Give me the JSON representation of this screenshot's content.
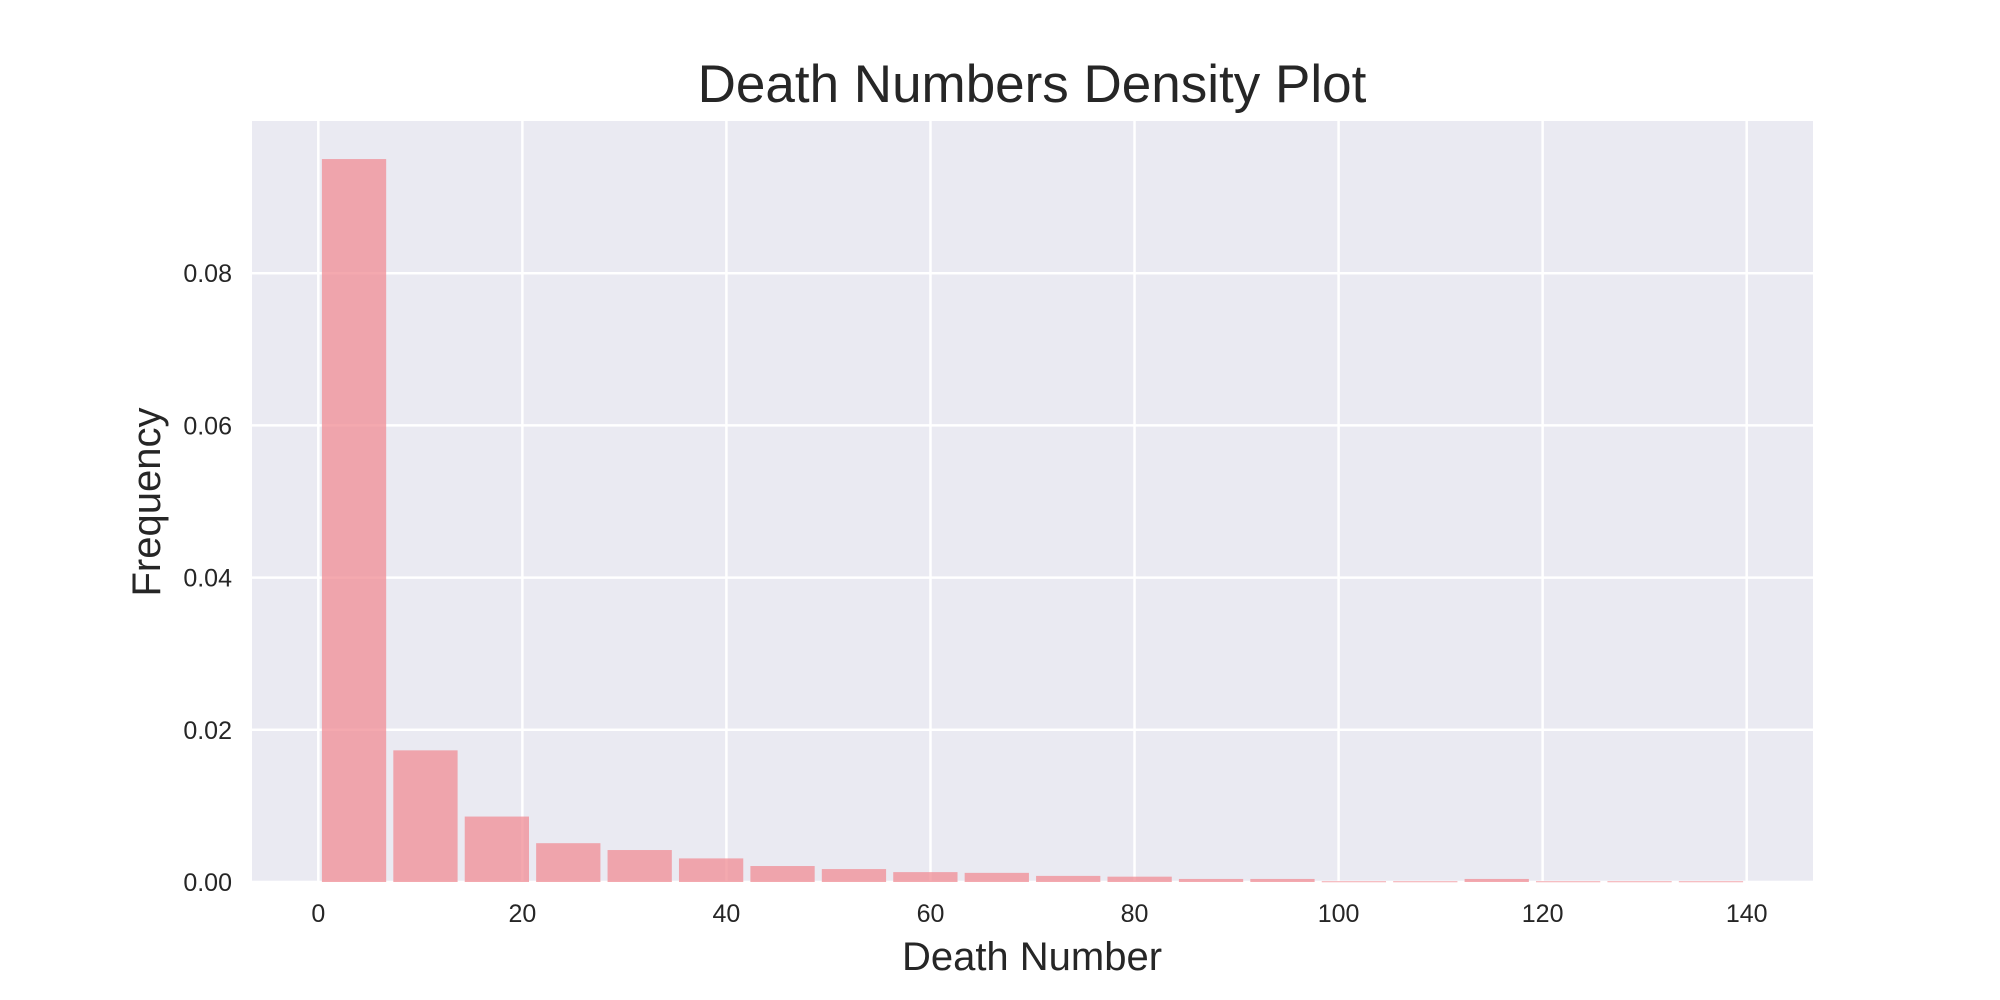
{
  "chart_data": {
    "type": "bar",
    "title": "Death Numbers Density Plot",
    "xlabel": "Death Number",
    "ylabel": "Frequency",
    "xlim": [
      -6.5,
      146.5
    ],
    "ylim": [
      0,
      0.1
    ],
    "grid": true,
    "xticks": [
      0,
      20,
      40,
      60,
      80,
      100,
      120,
      140
    ],
    "xtick_labels": [
      "0",
      "20",
      "40",
      "60",
      "80",
      "100",
      "120",
      "140"
    ],
    "yticks": [
      0,
      0.02,
      0.04,
      0.06,
      0.08
    ],
    "ytick_labels": [
      "0.00",
      "0.02",
      "0.04",
      "0.06",
      "0.08"
    ],
    "bin_width": 7,
    "bins": [
      {
        "start": 0,
        "end": 7,
        "value": 0.095
      },
      {
        "start": 7,
        "end": 14,
        "value": 0.0173
      },
      {
        "start": 14,
        "end": 21,
        "value": 0.0086
      },
      {
        "start": 21,
        "end": 28,
        "value": 0.0051
      },
      {
        "start": 28,
        "end": 35,
        "value": 0.0042
      },
      {
        "start": 35,
        "end": 42,
        "value": 0.0031
      },
      {
        "start": 42,
        "end": 49,
        "value": 0.0021
      },
      {
        "start": 49,
        "end": 56,
        "value": 0.0017
      },
      {
        "start": 56,
        "end": 63,
        "value": 0.0013
      },
      {
        "start": 63,
        "end": 70,
        "value": 0.0012
      },
      {
        "start": 70,
        "end": 77,
        "value": 0.0008
      },
      {
        "start": 77,
        "end": 84,
        "value": 0.0007
      },
      {
        "start": 84,
        "end": 91,
        "value": 0.0004
      },
      {
        "start": 91,
        "end": 98,
        "value": 0.0004
      },
      {
        "start": 98,
        "end": 105,
        "value": 0.0001
      },
      {
        "start": 105,
        "end": 112,
        "value": 0.0001
      },
      {
        "start": 112,
        "end": 119,
        "value": 0.0004
      },
      {
        "start": 119,
        "end": 126,
        "value": 0.0001
      },
      {
        "start": 126,
        "end": 133,
        "value": 0.0001
      },
      {
        "start": 133,
        "end": 140,
        "value": 0.0001
      }
    ],
    "colors": {
      "plot_background": "#eaeaf2",
      "bar": "#f08c94",
      "grid": "#ffffff",
      "text": "#262626"
    }
  }
}
